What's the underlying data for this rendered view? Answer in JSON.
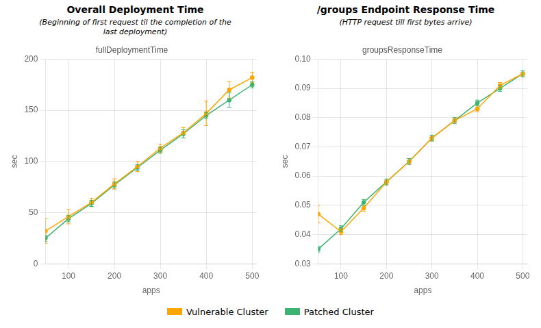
{
  "chart_data": [
    {
      "type": "line",
      "title": "Overall Deployment Time",
      "subtitle": "(Beginning of first request til the completion of the\nlast deployment)",
      "annotations": [
        "fullDeploymentTime"
      ],
      "xlabel": "apps",
      "ylabel": "sec",
      "x": [
        50,
        100,
        150,
        200,
        250,
        300,
        350,
        400,
        450,
        500
      ],
      "series": [
        {
          "name": "Vulnerable Cluster",
          "color": "#FFA500",
          "marker": "circle",
          "line_style": "solid",
          "values": [
            32,
            46,
            60,
            78,
            95,
            113,
            128,
            147,
            170,
            182
          ],
          "errors": [
            12,
            7,
            4,
            5,
            5,
            4,
            5,
            12,
            8,
            5
          ]
        },
        {
          "name": "Patched Cluster",
          "color": "#3CB371",
          "marker": "circle",
          "line_style": "solid",
          "values": [
            25,
            44,
            59,
            77,
            94,
            111,
            127,
            145,
            160,
            175
          ],
          "errors": [
            3,
            3,
            3,
            3,
            3,
            3,
            4,
            3,
            7,
            3
          ]
        }
      ],
      "xlim": [
        50,
        510
      ],
      "xticks": [
        100,
        200,
        300,
        400,
        500
      ],
      "ylim": [
        0,
        200
      ],
      "yticks": [
        0,
        50,
        100,
        150,
        200
      ],
      "grid": true,
      "legend": "bottom"
    },
    {
      "type": "line",
      "title": "/groups Endpoint Response Time",
      "subtitle": "(HTTP request till first bytes arrive)",
      "annotations": [
        "groupsResponseTime"
      ],
      "xlabel": "apps",
      "ylabel": "sec",
      "x": [
        50,
        100,
        150,
        200,
        250,
        300,
        350,
        400,
        450,
        500
      ],
      "series": [
        {
          "name": "Vulnerable Cluster",
          "color": "#FFA500",
          "marker": "circle",
          "line_style": "solid",
          "values": [
            0.047,
            0.041,
            0.049,
            0.058,
            0.065,
            0.073,
            0.079,
            0.083,
            0.091,
            0.095
          ],
          "errors": [
            0.003,
            0.001,
            0.001,
            0.001,
            0.001,
            0.001,
            0.001,
            0.001,
            0.001,
            0.001
          ]
        },
        {
          "name": "Patched Cluster",
          "color": "#3CB371",
          "marker": "circle",
          "line_style": "solid",
          "values": [
            0.035,
            0.042,
            0.051,
            0.058,
            0.065,
            0.073,
            0.079,
            0.085,
            0.09,
            0.095
          ],
          "errors": [
            0.001,
            0.001,
            0.001,
            0.001,
            0.001,
            0.001,
            0.001,
            0.001,
            0.001,
            0.001
          ]
        }
      ],
      "xlim": [
        50,
        510
      ],
      "xticks": [
        100,
        200,
        300,
        400,
        500
      ],
      "ylim": [
        0.03,
        0.1
      ],
      "yticks": [
        0.03,
        0.04,
        0.05,
        0.06,
        0.07,
        0.08,
        0.09,
        {
          "value": 0.1,
          "label": "0.10"
        }
      ],
      "grid": true,
      "legend": "bottom"
    }
  ]
}
